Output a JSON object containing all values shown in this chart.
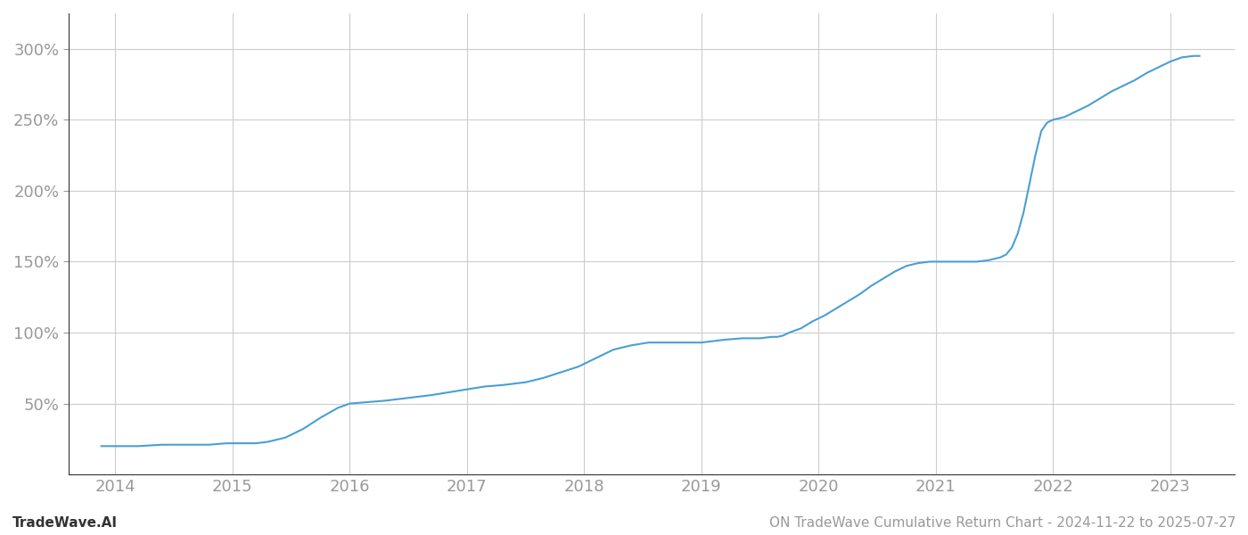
{
  "title": "ON TradeWave Cumulative Return Chart - 2024-11-22 to 2025-07-27",
  "watermark": "TradeWave.AI",
  "line_color": "#4a9fd4",
  "background_color": "#ffffff",
  "grid_color": "#cccccc",
  "x_years": [
    2014,
    2015,
    2016,
    2017,
    2018,
    2019,
    2020,
    2021,
    2022,
    2023
  ],
  "y_ticks": [
    50,
    100,
    150,
    200,
    250,
    300
  ],
  "xlim": [
    2013.6,
    2023.55
  ],
  "ylim": [
    0,
    325
  ],
  "data_points": [
    [
      2013.88,
      20
    ],
    [
      2014.0,
      20
    ],
    [
      2014.2,
      20
    ],
    [
      2014.4,
      21
    ],
    [
      2014.6,
      21
    ],
    [
      2014.8,
      21
    ],
    [
      2014.95,
      22
    ],
    [
      2015.05,
      22
    ],
    [
      2015.1,
      22
    ],
    [
      2015.2,
      22
    ],
    [
      2015.3,
      23
    ],
    [
      2015.45,
      26
    ],
    [
      2015.6,
      32
    ],
    [
      2015.75,
      40
    ],
    [
      2015.9,
      47
    ],
    [
      2016.0,
      50
    ],
    [
      2016.15,
      51
    ],
    [
      2016.3,
      52
    ],
    [
      2016.5,
      54
    ],
    [
      2016.7,
      56
    ],
    [
      2016.85,
      58
    ],
    [
      2017.0,
      60
    ],
    [
      2017.15,
      62
    ],
    [
      2017.3,
      63
    ],
    [
      2017.5,
      65
    ],
    [
      2017.65,
      68
    ],
    [
      2017.8,
      72
    ],
    [
      2017.95,
      76
    ],
    [
      2018.1,
      82
    ],
    [
      2018.25,
      88
    ],
    [
      2018.4,
      91
    ],
    [
      2018.55,
      93
    ],
    [
      2018.7,
      93
    ],
    [
      2018.85,
      93
    ],
    [
      2019.0,
      93
    ],
    [
      2019.1,
      94
    ],
    [
      2019.2,
      95
    ],
    [
      2019.35,
      96
    ],
    [
      2019.5,
      96
    ],
    [
      2019.6,
      97
    ],
    [
      2019.65,
      97
    ],
    [
      2019.7,
      98
    ],
    [
      2019.75,
      100
    ],
    [
      2019.85,
      103
    ],
    [
      2019.95,
      108
    ],
    [
      2020.05,
      112
    ],
    [
      2020.15,
      117
    ],
    [
      2020.25,
      122
    ],
    [
      2020.35,
      127
    ],
    [
      2020.45,
      133
    ],
    [
      2020.55,
      138
    ],
    [
      2020.65,
      143
    ],
    [
      2020.75,
      147
    ],
    [
      2020.85,
      149
    ],
    [
      2020.95,
      150
    ],
    [
      2021.05,
      150
    ],
    [
      2021.15,
      150
    ],
    [
      2021.25,
      150
    ],
    [
      2021.35,
      150
    ],
    [
      2021.45,
      151
    ],
    [
      2021.5,
      152
    ],
    [
      2021.55,
      153
    ],
    [
      2021.6,
      155
    ],
    [
      2021.65,
      160
    ],
    [
      2021.7,
      170
    ],
    [
      2021.75,
      185
    ],
    [
      2021.8,
      205
    ],
    [
      2021.85,
      225
    ],
    [
      2021.9,
      242
    ],
    [
      2021.95,
      248
    ],
    [
      2022.0,
      250
    ],
    [
      2022.1,
      252
    ],
    [
      2022.2,
      256
    ],
    [
      2022.3,
      260
    ],
    [
      2022.4,
      265
    ],
    [
      2022.5,
      270
    ],
    [
      2022.6,
      274
    ],
    [
      2022.7,
      278
    ],
    [
      2022.8,
      283
    ],
    [
      2022.9,
      287
    ],
    [
      2023.0,
      291
    ],
    [
      2023.1,
      294
    ],
    [
      2023.2,
      295
    ],
    [
      2023.25,
      295
    ]
  ]
}
